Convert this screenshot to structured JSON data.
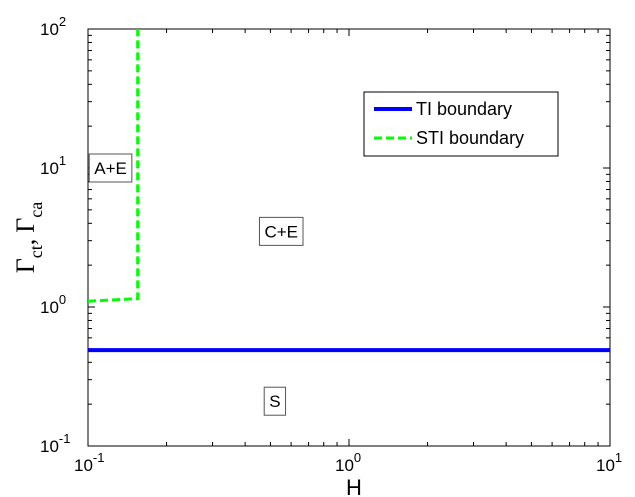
{
  "chart_data": {
    "type": "line",
    "xscale": "log",
    "yscale": "log",
    "xlim": [
      0.1,
      10
    ],
    "ylim": [
      0.1,
      100
    ],
    "xlabel": "H",
    "ylabel": "Γct, Γca",
    "x_ticks": [
      {
        "value": 0.1,
        "base": "10",
        "exp": "-1"
      },
      {
        "value": 1,
        "base": "10",
        "exp": "0"
      },
      {
        "value": 10,
        "base": "10",
        "exp": "1"
      }
    ],
    "y_ticks": [
      {
        "value": 0.1,
        "base": "10",
        "exp": "-1"
      },
      {
        "value": 1,
        "base": "10",
        "exp": "0"
      },
      {
        "value": 10,
        "base": "10",
        "exp": "1"
      },
      {
        "value": 100,
        "base": "10",
        "exp": "2"
      }
    ],
    "grid": false,
    "legend_position": "top-right",
    "series": [
      {
        "name": "TI boundary",
        "color": "#0000ff",
        "style": "solid",
        "x": [
          0.1,
          10
        ],
        "y": [
          0.49,
          0.49
        ]
      },
      {
        "name": "STI boundary",
        "color": "#00ff00",
        "style": "dashed",
        "x": [
          0.1,
          0.155,
          0.155
        ],
        "y": [
          1.1,
          1.15,
          100
        ]
      }
    ],
    "region_labels": [
      {
        "text": "A+E",
        "x": 0.122,
        "y": 10.0
      },
      {
        "text": "C+E",
        "x": 0.55,
        "y": 3.5
      },
      {
        "text": "S",
        "x": 0.52,
        "y": 0.21
      }
    ]
  }
}
